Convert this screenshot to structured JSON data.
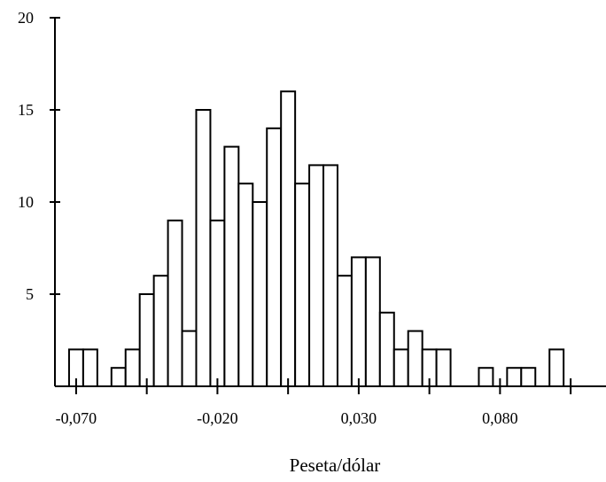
{
  "chart_data": {
    "type": "bar",
    "title": "",
    "xlabel": "Peseta/dólar",
    "ylabel": "",
    "ylim": [
      0,
      20
    ],
    "xlim": [
      -0.0775,
      0.1175
    ],
    "bin_width": 0.005,
    "yticks": [
      {
        "value": 5,
        "label": "5"
      },
      {
        "value": 10,
        "label": "10"
      },
      {
        "value": 15,
        "label": "15"
      },
      {
        "value": 20,
        "label": "20"
      }
    ],
    "xticks": [
      {
        "value": -0.07,
        "label": "-0,070"
      },
      {
        "value": -0.02,
        "label": "-0,020"
      },
      {
        "value": 0.03,
        "label": "0,030"
      },
      {
        "value": 0.08,
        "label": "0,080"
      }
    ],
    "bin_centers": [
      -0.07,
      -0.065,
      -0.06,
      -0.055,
      -0.05,
      -0.045,
      -0.04,
      -0.035,
      -0.03,
      -0.025,
      -0.02,
      -0.015,
      -0.01,
      -0.005,
      0.0,
      0.005,
      0.01,
      0.015,
      0.02,
      0.025,
      0.03,
      0.035,
      0.04,
      0.045,
      0.05,
      0.055,
      0.06,
      0.065,
      0.07,
      0.075,
      0.08,
      0.085,
      0.09,
      0.095,
      0.1,
      0.105
    ],
    "values": [
      2,
      2,
      0,
      1,
      2,
      5,
      6,
      9,
      3,
      15,
      9,
      13,
      11,
      10,
      14,
      16,
      11,
      12,
      12,
      6,
      7,
      7,
      4,
      2,
      3,
      2,
      2,
      0,
      0,
      1,
      0,
      1,
      1,
      0,
      2,
      0
    ],
    "grid": false,
    "legend": "none"
  }
}
